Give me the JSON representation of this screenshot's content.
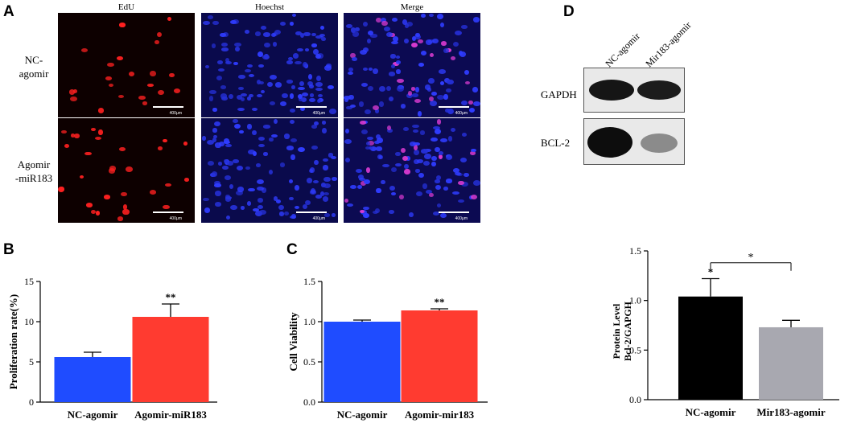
{
  "panels": {
    "A": "A",
    "B": "B",
    "C": "C",
    "D": "D"
  },
  "panel_a": {
    "columns": [
      "EdU",
      "Hoechst",
      "Merge"
    ],
    "rows": [
      {
        "label_line1": "NC-",
        "label_line2": "agomir"
      },
      {
        "label_line1": "Agomir",
        "label_line2": "-miR183"
      }
    ],
    "scale_text": "400μm"
  },
  "panel_d_blot": {
    "lanes": [
      "NC-agomir",
      "Mir183-agomir"
    ],
    "proteins": [
      "GAPDH",
      "BCL-2"
    ]
  },
  "colors": {
    "blue_bar": "#1f4cff",
    "red_bar": "#ff3b30",
    "black_bar": "#000000",
    "grey_bar": "#a8a8b0"
  },
  "chart_data": [
    {
      "type": "bar",
      "panel": "B",
      "categories": [
        "NC-agomir",
        "Agomir-miR183"
      ],
      "values": [
        5.6,
        10.6
      ],
      "errors": [
        0.6,
        1.6
      ],
      "annotations": [
        "",
        "**"
      ],
      "ylabel": "Proliferation rate(%)",
      "xlabel": "",
      "ylim": [
        0,
        15
      ],
      "yticks": [
        "0",
        "5",
        "10",
        "15"
      ],
      "bar_colors": [
        "#1f4cff",
        "#ff3b30"
      ]
    },
    {
      "type": "bar",
      "panel": "C",
      "categories": [
        "NC-agomir",
        "Agomir-mir183"
      ],
      "values": [
        1.0,
        1.14
      ],
      "errors": [
        0.02,
        0.02
      ],
      "annotations": [
        "",
        "**"
      ],
      "ylabel": "Cell Viability",
      "xlabel": "",
      "ylim": [
        0,
        1.5
      ],
      "yticks": [
        "0.0",
        "0.5",
        "1.0",
        "1.5"
      ],
      "bar_colors": [
        "#1f4cff",
        "#ff3b30"
      ]
    },
    {
      "type": "bar",
      "panel": "D",
      "categories": [
        "NC-agomir",
        "Mir183-agomir"
      ],
      "values": [
        1.04,
        0.73
      ],
      "errors": [
        0.18,
        0.07
      ],
      "annotations": [
        "*"
      ],
      "ylabel_line1": "Protein Level",
      "ylabel_line2": "Bcl-2/GAPGH",
      "xlabel": "",
      "ylim": [
        0,
        1.5
      ],
      "yticks": [
        "0.0",
        "0.5",
        "1.0",
        "1.5"
      ],
      "bar_colors": [
        "#000000",
        "#a8a8b0"
      ]
    }
  ]
}
